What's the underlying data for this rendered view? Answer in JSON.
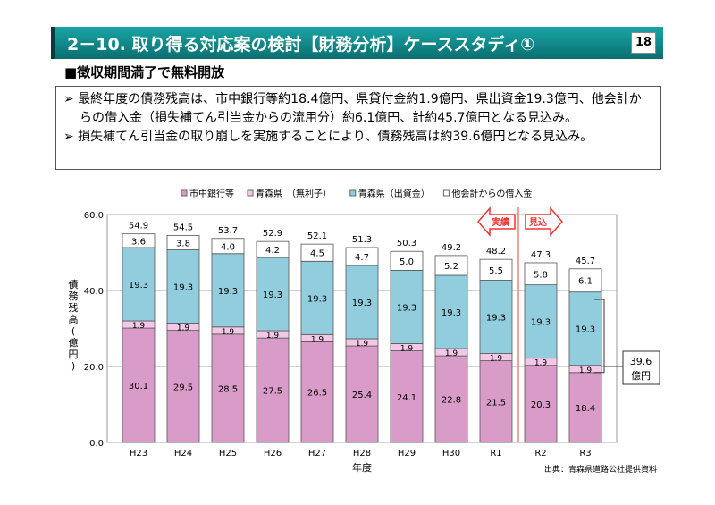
{
  "header": {
    "title": "2－10. 取り得る対応案の検討【財務分析】ケーススタディ①",
    "page": "18"
  },
  "subtitle": "■徴収期間満了で無料開放",
  "bullets": [
    "➢ 最終年度の債務残高は、市中銀行等約18.4億円、県貸付金約1.9億円、県出資金19.3億円、他会計からの借入金（損失補てん引当金からの流用分）約6.1億円、計約45.7億円となる見込み。",
    "➢ 損失補てん引当金の取り崩しを実施することにより、債務残高は約39.6億円となる見込み。"
  ],
  "chart_data": {
    "type": "bar",
    "stacked": true,
    "categories": [
      "H23",
      "H24",
      "H25",
      "H26",
      "H27",
      "H28",
      "H29",
      "H30",
      "R1",
      "R2",
      "R3"
    ],
    "series": [
      {
        "name": "市中銀行等",
        "color": "#d99cc8",
        "values": [
          30.1,
          29.5,
          28.5,
          27.5,
          26.5,
          25.4,
          24.1,
          22.8,
          21.5,
          20.3,
          18.4
        ]
      },
      {
        "name": "青森県　（無利子）",
        "color": "#f2c8e6",
        "values": [
          1.9,
          1.9,
          1.9,
          1.9,
          1.9,
          1.9,
          1.9,
          1.9,
          1.9,
          1.9,
          1.9
        ]
      },
      {
        "name": "青森県（出資金）",
        "color": "#92cddd",
        "values": [
          19.3,
          19.3,
          19.3,
          19.3,
          19.3,
          19.3,
          19.3,
          19.3,
          19.3,
          19.3,
          19.3
        ]
      },
      {
        "name": "他会計からの借入金",
        "color": "#ffffff",
        "values": [
          3.6,
          3.8,
          4.0,
          4.2,
          4.5,
          4.7,
          5.0,
          5.2,
          5.5,
          5.8,
          6.1
        ]
      }
    ],
    "totals": [
      "54.9",
      "54.5",
      "53.7",
      "52.9",
      "52.1",
      "51.3",
      "50.3",
      "49.2",
      "48.2",
      "47.3",
      "45.7"
    ],
    "ylim": [
      0,
      60
    ],
    "yticks": [
      "0.0",
      "20.0",
      "40.0",
      "60.0"
    ],
    "xlabel": "年度",
    "ylabel": "債務残高(億円)",
    "legend_position": "top",
    "annotations": {
      "actual": "実績",
      "forecast": "見込",
      "bracket": "39.6",
      "bracket_unit": "億円",
      "source": "出典：青森県道路公社提供資料"
    }
  }
}
